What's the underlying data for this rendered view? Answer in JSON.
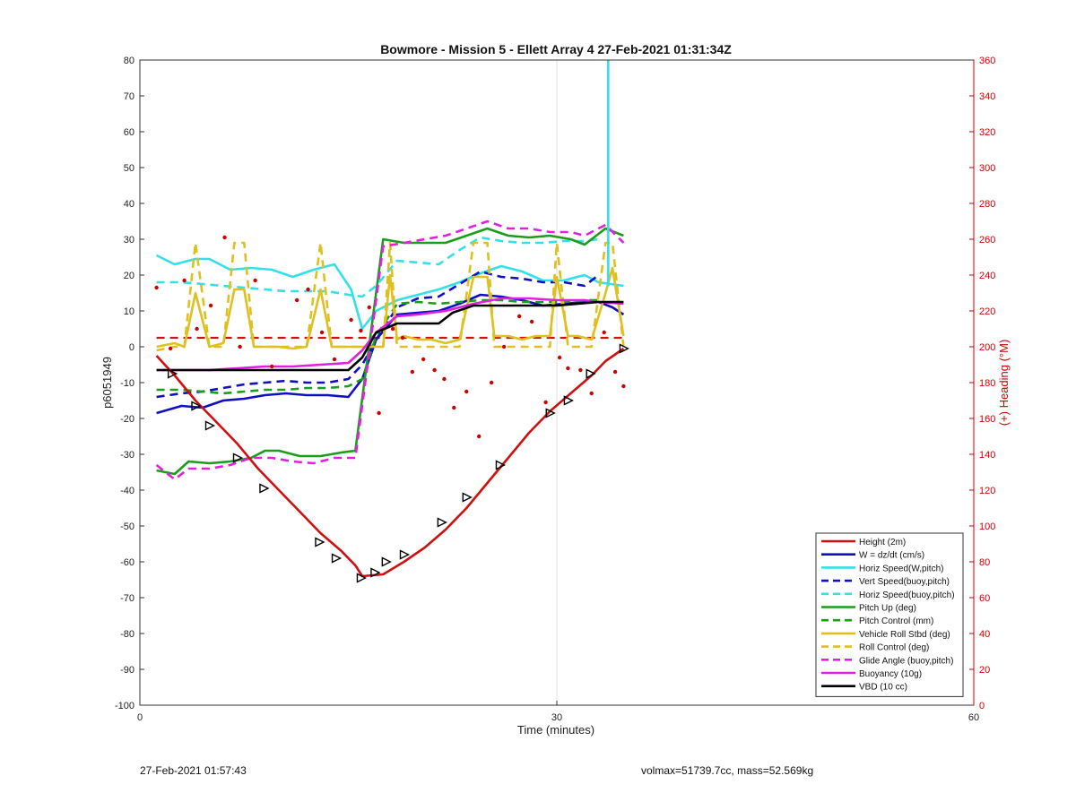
{
  "footer": {
    "date": "27-Feb-2021 01:57:43",
    "stats": "volmax=51739.7cc, mass=52.569kg"
  },
  "chart_data": {
    "type": "line",
    "title": "Bowmore - Mission 5 - Ellett Array 4 27-Feb-2021 01:31:34Z",
    "xlabel": "Time (minutes)",
    "ylabel": "p6051949",
    "y2label": "(+) Heading (°M)",
    "xlim": [
      0,
      60
    ],
    "ylim": [
      -100,
      80
    ],
    "y2lim": [
      0,
      360
    ],
    "xticks": [
      0,
      30,
      60
    ],
    "yticks": [
      80,
      70,
      60,
      50,
      40,
      30,
      20,
      10,
      0,
      -10,
      -20,
      -30,
      -40,
      -50,
      -60,
      -70,
      -80,
      -90,
      -100
    ],
    "y2ticks": [
      360,
      340,
      320,
      300,
      280,
      260,
      240,
      220,
      200,
      180,
      160,
      140,
      120,
      100,
      80,
      60,
      40,
      20,
      0
    ],
    "grid": "vertical at x=30",
    "legend_position": "bottom-right",
    "colors": {
      "red": "#d01010",
      "blue": "#1010c0",
      "cyan": "#33e0e8",
      "green": "#1a9e1a",
      "yellow": "#e0c020",
      "magenta": "#e020e0",
      "black": "#000000",
      "heading": "#cc0000"
    },
    "series": [
      {
        "name": "Height (2m)",
        "color": "red",
        "style": "solid",
        "x": [
          1.2,
          2.5,
          4,
          5.5,
          7,
          8.5,
          10,
          11.5,
          13,
          14.5,
          15.5,
          16,
          17.5,
          19,
          20.5,
          22,
          23.5,
          25,
          26.5,
          28,
          29.5,
          31,
          32.5,
          33.5,
          34.8
        ],
        "y": [
          -2.5,
          -8,
          -15,
          -21,
          -27,
          -34,
          -40,
          -46,
          -52,
          -57,
          -61,
          -64,
          -63.5,
          -60,
          -56,
          -51,
          -45,
          -38,
          -31,
          -24,
          -18,
          -13,
          -8,
          -4,
          -0.5
        ]
      },
      {
        "name": "W = dz/dt (cm/s)",
        "color": "blue",
        "style": "solid",
        "x": [
          1.2,
          3,
          4.5,
          6,
          7.5,
          9,
          10.5,
          12,
          13.5,
          15,
          16,
          17,
          18.5,
          20,
          21.5,
          23,
          24.5,
          26,
          27.5,
          29,
          30.5,
          32,
          33,
          34,
          34.8
        ],
        "y": [
          -18.5,
          -16.5,
          -17,
          -15,
          -14.5,
          -13.5,
          -13,
          -13.5,
          -13.5,
          -14,
          -9,
          2,
          9,
          9.5,
          10,
          12,
          14.5,
          14,
          13,
          11.5,
          12,
          12.5,
          12.5,
          11,
          9
        ]
      },
      {
        "name": "Horiz Speed(W,pitch)",
        "color": "cyan",
        "style": "solid",
        "x": [
          1.2,
          2.5,
          4,
          5,
          6.5,
          8,
          9.5,
          11,
          12.5,
          14,
          15.2,
          16,
          17,
          18.5,
          20,
          21.5,
          23,
          24.5,
          26,
          27.5,
          29,
          30.5,
          32,
          33,
          34.8
        ],
        "y": [
          25.5,
          23,
          24.5,
          24.5,
          21.5,
          22,
          21.5,
          19.5,
          21.5,
          23,
          16,
          5,
          10,
          13,
          14.5,
          16,
          18,
          20.5,
          22.5,
          21,
          18.5,
          18.5,
          20,
          18,
          17
        ]
      },
      {
        "name": "Vert Speed(buoy,pitch)",
        "color": "blue",
        "style": "dashed",
        "x": [
          1.2,
          3,
          4.5,
          6,
          7.5,
          9,
          10.5,
          12,
          13.5,
          15,
          16,
          17,
          18.5,
          20,
          21.5,
          23,
          24.5,
          26,
          27.5,
          29,
          30.5,
          32,
          33
        ],
        "y": [
          -14,
          -13,
          -12.5,
          -11.5,
          -10.5,
          -10,
          -9.5,
          -10,
          -10,
          -9,
          -5,
          2,
          11,
          13.5,
          14,
          17.5,
          21,
          19.5,
          19,
          18,
          18,
          17,
          20
        ]
      },
      {
        "name": "Horiz Speed(buoy,pitch)",
        "color": "cyan",
        "style": "dashed",
        "x": [
          1.2,
          3,
          4.5,
          6,
          7.5,
          9,
          10.5,
          12,
          13.5,
          15,
          16,
          17,
          18.5,
          20,
          21.5,
          23,
          24.5,
          26,
          27.5,
          29,
          30.5,
          32,
          33
        ],
        "y": [
          18,
          18,
          17.5,
          17,
          16.5,
          16,
          15.5,
          15.5,
          15.5,
          14.5,
          14,
          17,
          24,
          23.5,
          23,
          27,
          30.5,
          29.5,
          29,
          29,
          29.5,
          29.5,
          30
        ]
      },
      {
        "name": "Pitch Up (deg)",
        "color": "green",
        "style": "solid",
        "x": [
          1.2,
          2.5,
          3.5,
          5,
          6.5,
          8,
          9,
          10,
          11.5,
          13,
          14.5,
          15.5,
          17.5,
          19,
          20.5,
          22,
          23.5,
          25,
          26.5,
          28,
          29.5,
          31,
          32,
          33.5,
          34.8
        ],
        "y": [
          -34.5,
          -35.5,
          -32,
          -32.5,
          -32,
          -31,
          -29,
          -29,
          -30.5,
          -30.5,
          -29.5,
          -29,
          30,
          29,
          29,
          29,
          31,
          33,
          31,
          30.5,
          31,
          30,
          28.5,
          33,
          31
        ]
      },
      {
        "name": "Pitch Control (mm)",
        "color": "green",
        "style": "dashed",
        "x": [
          1.2,
          3,
          4.5,
          6,
          7.5,
          9,
          10.5,
          12,
          13.5,
          15,
          16,
          17,
          18.5,
          20,
          21.5,
          23,
          24.5,
          26,
          27.5,
          29,
          30.5,
          32,
          33
        ],
        "y": [
          -12,
          -12,
          -12.5,
          -13,
          -12.5,
          -12,
          -12,
          -11.5,
          -11.5,
          -11,
          -9,
          3,
          12,
          12.5,
          12,
          12.5,
          13,
          13,
          12.5,
          12.5,
          12.5,
          13,
          13
        ]
      },
      {
        "name": "Vehicle Roll Stbd (deg)",
        "color": "yellow",
        "style": "solid",
        "x": [
          1.2,
          2.5,
          3.2,
          4,
          5,
          6,
          6.8,
          7.5,
          8.2,
          9,
          10,
          11,
          12,
          13,
          13.8,
          14.5,
          15.5,
          16.5,
          17.5,
          18,
          18.5,
          19,
          20,
          21,
          22,
          23,
          24,
          25,
          25.5,
          26.5,
          27.5,
          28.5,
          29.5,
          30,
          30.8,
          31.5,
          32.5,
          33.5,
          34,
          34.8
        ],
        "y": [
          0,
          1,
          0,
          15,
          0,
          1,
          16,
          16,
          0,
          0,
          0,
          -0.5,
          0,
          16,
          0,
          0,
          0,
          0,
          0,
          20,
          2,
          3,
          2,
          2,
          1,
          2,
          19.5,
          19.5,
          3,
          3,
          2,
          3,
          3,
          19.5,
          3,
          3,
          2,
          15,
          22,
          3
        ]
      },
      {
        "name": "Roll Control (deg)",
        "color": "yellow",
        "style": "dashed",
        "x": [
          1.2,
          2.5,
          3.2,
          4,
          5,
          6,
          6.8,
          7.5,
          8.2,
          9,
          10,
          11,
          12,
          13,
          13.8,
          14.5,
          15.5,
          16.5,
          17.5,
          18,
          18.5,
          19,
          20,
          21,
          22,
          23,
          24,
          25,
          25.5,
          26.5,
          27.5,
          28.5,
          29.5,
          30,
          30.8,
          31.5,
          32.5,
          33.5,
          34,
          34.8
        ],
        "y": [
          -1,
          0,
          0,
          29,
          0,
          0,
          29,
          29,
          0,
          0,
          0,
          0,
          0,
          29,
          0,
          0,
          0,
          0,
          0,
          29,
          0,
          0,
          0,
          0,
          0,
          0,
          29,
          29,
          0,
          0,
          0,
          0,
          0,
          29,
          0,
          0,
          0,
          29,
          29,
          0
        ]
      },
      {
        "name": "Glide Angle (buoy,pitch)",
        "color": "magenta",
        "style": "dashed",
        "x": [
          1.2,
          2.5,
          3.5,
          5,
          6.5,
          8,
          9.5,
          11,
          12.5,
          14,
          15.5,
          17.5,
          19,
          20.5,
          22,
          23.5,
          25,
          26.5,
          28,
          29.5,
          31,
          32,
          33.5,
          34.8
        ],
        "y": [
          -33,
          -37,
          -34,
          -34,
          -33,
          -31,
          -31,
          -32,
          -32.5,
          -31,
          -31,
          28,
          29,
          30,
          31,
          33,
          35,
          33,
          33,
          32,
          32,
          31,
          34,
          29
        ]
      },
      {
        "name": "Buoyancy (10g)",
        "color": "magenta",
        "style": "solid",
        "x": [
          1.2,
          3,
          5,
          7,
          9,
          11,
          13,
          15,
          16,
          17,
          18.5,
          20,
          22,
          24,
          26,
          28,
          30,
          32,
          33,
          34.8
        ],
        "y": [
          -6.5,
          -6.5,
          -6.5,
          -6,
          -5.5,
          -5.5,
          -5,
          -4.5,
          -1,
          4,
          8.5,
          9,
          10,
          12,
          13.5,
          13.5,
          13,
          13,
          12.5,
          12
        ]
      },
      {
        "name": "VBD (10 cc)",
        "color": "black",
        "style": "solid",
        "x": [
          1.2,
          5,
          10,
          15,
          16,
          17,
          18.5,
          20,
          21.5,
          22.5,
          24,
          27,
          30,
          33,
          34.8
        ],
        "y": [
          -6.5,
          -6.5,
          -6.5,
          -6.5,
          -3,
          4,
          6.5,
          6.5,
          6.5,
          9.5,
          11.5,
          11.5,
          11.5,
          12.5,
          12.5
        ]
      }
    ],
    "reference_lines": [
      {
        "color": "red",
        "style": "dashed",
        "y": 2.5,
        "x_range": [
          1.2,
          34.8
        ]
      }
    ],
    "spike": {
      "color": "cyan",
      "x": 33.7,
      "y_from": 17,
      "y_to": 80
    },
    "height_markers": {
      "x": [
        2.3,
        4,
        5,
        7,
        8.9,
        12.9,
        14.1,
        15.9,
        16.9,
        17.7,
        19,
        21.7,
        23.5,
        25.9,
        29.5,
        30.8,
        32.4,
        34.8
      ],
      "y": [
        -7.5,
        -16.5,
        -22,
        -31,
        -39.5,
        -54.5,
        -59,
        -64.5,
        -63,
        -60,
        -58,
        -49,
        -42,
        -33,
        -18.5,
        -15,
        -7.5,
        -0.5
      ]
    },
    "heading_points": {
      "x": [
        1.2,
        2.2,
        3.2,
        4.1,
        5.1,
        6.1,
        7.2,
        8.3,
        9.5,
        11.3,
        12.1,
        13.1,
        14.0,
        15.2,
        15.9,
        16.5,
        17.2,
        18.2,
        18.9,
        19.6,
        20.4,
        21.2,
        21.9,
        22.6,
        23.5,
        24.4,
        25.3,
        26.2,
        27.3,
        28.2,
        29.2,
        30.2,
        30.8,
        31.7,
        32.5,
        33.4,
        34.2,
        34.8
      ],
      "y": [
        233,
        199,
        237,
        210,
        223,
        261,
        200,
        237,
        189,
        226,
        232,
        208,
        193,
        215,
        209,
        222,
        163,
        210,
        205,
        186,
        193,
        187,
        182,
        166,
        175,
        150,
        180,
        200,
        217,
        214,
        169,
        194,
        188,
        187,
        174,
        208,
        186,
        178
      ]
    }
  }
}
